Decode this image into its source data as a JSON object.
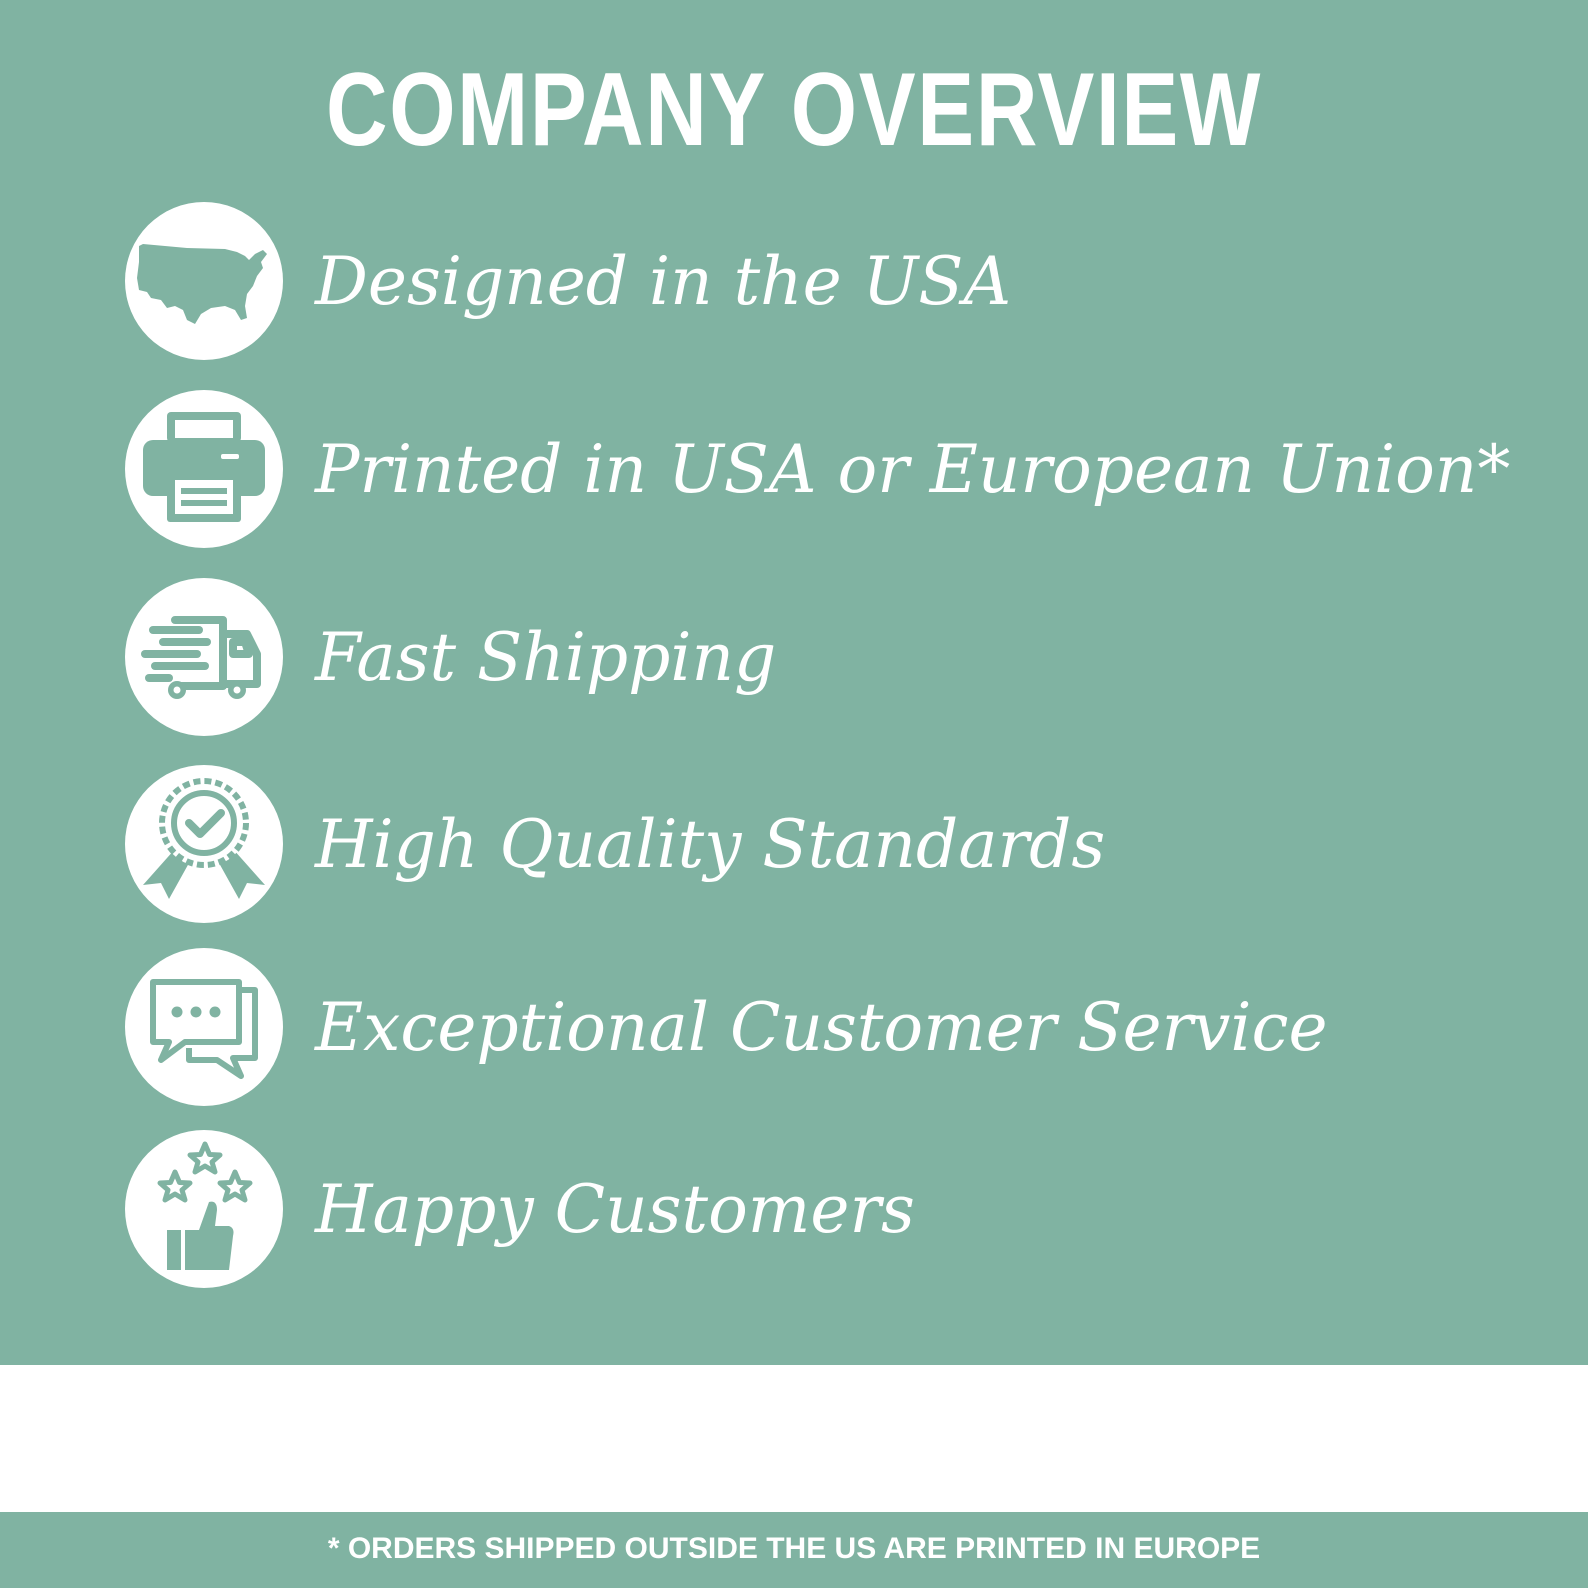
{
  "header": {
    "title": "COMPANY OVERVIEW"
  },
  "features": [
    {
      "label": "Designed in the USA",
      "icon": "usa-map-icon"
    },
    {
      "label": "Printed in USA or European Union*",
      "icon": "printer-icon"
    },
    {
      "label": "Fast Shipping",
      "icon": "delivery-truck-icon"
    },
    {
      "label": "High Quality Standards",
      "icon": "quality-badge-icon"
    },
    {
      "label": "Exceptional Customer Service",
      "icon": "chat-bubbles-icon"
    },
    {
      "label": "Happy Customers",
      "icon": "thumbs-up-stars-icon"
    }
  ],
  "footer": {
    "note": "* ORDERS SHIPPED OUTSIDE THE US ARE PRINTED IN EUROPE"
  },
  "colors": {
    "panel": "#80b3a2",
    "text": "#ffffff",
    "icon_bg": "#ffffff"
  }
}
